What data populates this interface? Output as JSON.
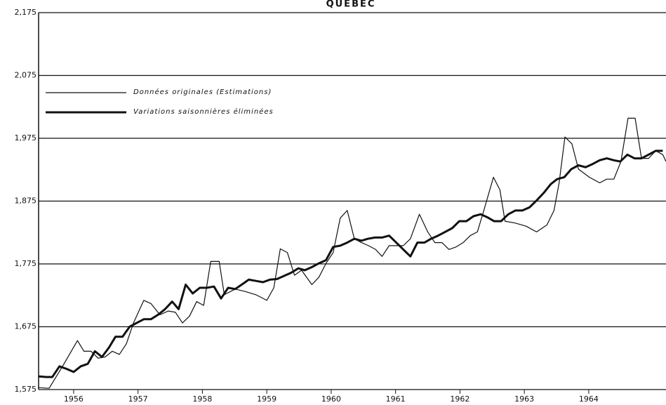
{
  "chart_data": {
    "type": "line",
    "title": "QUEBEC",
    "xlim": [
      1955.956,
      1965.7
    ],
    "xticks": [
      {
        "value": 1956.5,
        "label": "1956"
      },
      {
        "value": 1957.5,
        "label": "1957"
      },
      {
        "value": 1958.5,
        "label": "1958"
      },
      {
        "value": 1959.5,
        "label": "1959"
      },
      {
        "value": 1960.5,
        "label": "1960"
      },
      {
        "value": 1961.5,
        "label": "1961"
      },
      {
        "value": 1962.5,
        "label": "1962"
      },
      {
        "value": 1963.5,
        "label": "1963"
      },
      {
        "value": 1964.5,
        "label": "1964"
      }
    ],
    "ylim": [
      1575,
      2175
    ],
    "yticks": [
      {
        "value": 1575,
        "label": "1,575"
      },
      {
        "value": 1675,
        "label": "1,675"
      },
      {
        "value": 1775,
        "label": "1,775"
      },
      {
        "value": 1875,
        "label": "1,875"
      },
      {
        "value": 1975,
        "label": "1,975"
      },
      {
        "value": 2075,
        "label": "2,075"
      },
      {
        "value": 2175,
        "label": "2,175"
      }
    ],
    "grid": true,
    "legend": "upper left",
    "series": [
      {
        "name": "Données originales (Estimations)",
        "color": "#111111",
        "width": 1.2,
        "x": [
          1955.96,
          1956.12,
          1956.34,
          1956.56,
          1956.66,
          1956.77,
          1956.88,
          1956.99,
          1957.1,
          1957.21,
          1957.32,
          1957.43,
          1957.59,
          1957.7,
          1957.84,
          1957.97,
          1958.08,
          1958.19,
          1958.3,
          1958.41,
          1958.52,
          1958.63,
          1958.76,
          1958.84,
          1959.01,
          1959.17,
          1959.33,
          1959.5,
          1959.61,
          1959.71,
          1959.82,
          1959.93,
          1960.04,
          1960.2,
          1960.31,
          1960.42,
          1960.53,
          1960.64,
          1960.75,
          1960.86,
          1960.97,
          1961.08,
          1961.19,
          1961.29,
          1961.4,
          1961.51,
          1961.62,
          1961.73,
          1961.87,
          1962.0,
          1962.11,
          1962.22,
          1962.33,
          1962.44,
          1962.55,
          1962.66,
          1962.77,
          1962.87,
          1963.02,
          1963.12,
          1963.2,
          1963.36,
          1963.53,
          1963.69,
          1963.85,
          1963.96,
          1964.04,
          1964.13,
          1964.24,
          1964.34,
          1964.51,
          1964.67,
          1964.78,
          1964.89,
          1965.0,
          1965.11,
          1965.22,
          1965.32,
          1965.43,
          1965.54,
          1965.65,
          1965.7
        ],
        "values": [
          1578,
          1577,
          1614,
          1653,
          1636,
          1636,
          1625,
          1627,
          1636,
          1631,
          1648,
          1681,
          1717,
          1712,
          1694,
          1700,
          1698,
          1681,
          1692,
          1715,
          1709,
          1779,
          1779,
          1726,
          1735,
          1731,
          1726,
          1717,
          1737,
          1799,
          1793,
          1757,
          1765,
          1742,
          1754,
          1776,
          1793,
          1848,
          1860,
          1815,
          1809,
          1804,
          1798,
          1787,
          1804,
          1804,
          1804,
          1815,
          1854,
          1826,
          1809,
          1809,
          1798,
          1802,
          1809,
          1820,
          1826,
          1860,
          1913,
          1893,
          1843,
          1840,
          1835,
          1826,
          1837,
          1860,
          1904,
          1977,
          1966,
          1926,
          1913,
          1904,
          1910,
          1910,
          1938,
          2007,
          2007,
          1943,
          1943,
          1955,
          1949,
          1938
        ]
      },
      {
        "name": "Variations saisonnières éliminées",
        "color": "#111111",
        "width": 3,
        "x": [
          1955.96,
          1956.07,
          1956.17,
          1956.28,
          1956.39,
          1956.5,
          1956.61,
          1956.72,
          1956.83,
          1956.94,
          1957.05,
          1957.15,
          1957.26,
          1957.37,
          1957.48,
          1957.59,
          1957.7,
          1957.81,
          1957.92,
          1958.03,
          1958.13,
          1958.24,
          1958.35,
          1958.46,
          1958.57,
          1958.68,
          1958.79,
          1958.9,
          1959.01,
          1959.11,
          1959.22,
          1959.33,
          1959.44,
          1959.55,
          1959.66,
          1959.77,
          1959.88,
          1959.99,
          1960.09,
          1960.2,
          1960.31,
          1960.42,
          1960.53,
          1960.64,
          1960.75,
          1960.86,
          1960.97,
          1961.07,
          1961.18,
          1961.29,
          1961.4,
          1961.51,
          1961.62,
          1961.73,
          1961.84,
          1961.95,
          1962.05,
          1962.16,
          1962.27,
          1962.38,
          1962.49,
          1962.6,
          1962.71,
          1962.82,
          1962.93,
          1963.03,
          1963.14,
          1963.25,
          1963.36,
          1963.47,
          1963.58,
          1963.69,
          1963.8,
          1963.91,
          1964.01,
          1964.12,
          1964.23,
          1964.34,
          1964.45,
          1964.56,
          1964.67,
          1964.78,
          1964.89,
          1964.99,
          1965.1,
          1965.21,
          1965.32,
          1965.43,
          1965.54,
          1965.65
        ],
        "values": [
          1596,
          1595,
          1595,
          1612,
          1608,
          1603,
          1612,
          1616,
          1636,
          1627,
          1642,
          1659,
          1659,
          1675,
          1681,
          1687,
          1687,
          1694,
          1703,
          1715,
          1703,
          1742,
          1728,
          1737,
          1737,
          1739,
          1720,
          1737,
          1735,
          1742,
          1750,
          1748,
          1746,
          1750,
          1751,
          1756,
          1761,
          1768,
          1765,
          1770,
          1776,
          1781,
          1802,
          1804,
          1809,
          1815,
          1812,
          1815,
          1817,
          1817,
          1820,
          1809,
          1798,
          1787,
          1809,
          1809,
          1815,
          1820,
          1826,
          1832,
          1843,
          1843,
          1851,
          1854,
          1849,
          1843,
          1843,
          1854,
          1860,
          1860,
          1865,
          1876,
          1888,
          1902,
          1910,
          1913,
          1926,
          1932,
          1929,
          1934,
          1940,
          1943,
          1940,
          1938,
          1949,
          1943,
          1943,
          1949,
          1955,
          1955
        ]
      }
    ]
  }
}
